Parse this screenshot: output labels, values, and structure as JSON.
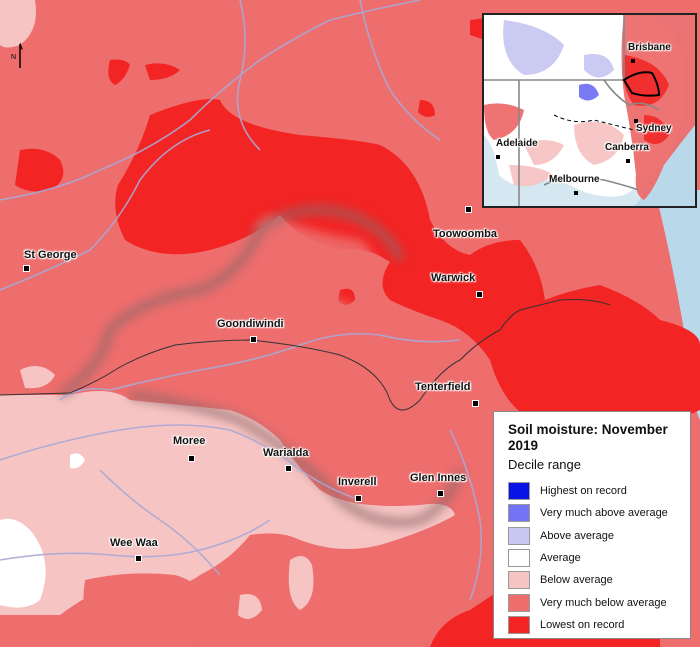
{
  "north_arrow": {
    "letter": "N"
  },
  "towns": [
    {
      "name": "Toowoomba"
    },
    {
      "name": "St George"
    },
    {
      "name": "Warwick"
    },
    {
      "name": "Goondiwindi"
    },
    {
      "name": "Tenterfield"
    },
    {
      "name": "Moree"
    },
    {
      "name": "Warialda"
    },
    {
      "name": "Inverell"
    },
    {
      "name": "Glen Innes"
    },
    {
      "name": "Wee Waa"
    }
  ],
  "inset": {
    "cities": [
      {
        "name": "Brisbane"
      },
      {
        "name": "Sydney"
      },
      {
        "name": "Canberra"
      },
      {
        "name": "Adelaide"
      },
      {
        "name": "Melbourne"
      }
    ]
  },
  "legend": {
    "title": "Soil moisture: November 2019",
    "subtitle": "Decile range",
    "items": [
      {
        "label": "Highest on record",
        "color": "#0a14e6"
      },
      {
        "label": "Very much above average",
        "color": "#7373f5"
      },
      {
        "label": "Above average",
        "color": "#c8c8f2"
      },
      {
        "label": "Average",
        "color": "#ffffff"
      },
      {
        "label": "Below average",
        "color": "#f7c4c4"
      },
      {
        "label": "Very much below average",
        "color": "#ee6d6d"
      },
      {
        "label": "Lowest on record",
        "color": "#f22424"
      }
    ]
  }
}
